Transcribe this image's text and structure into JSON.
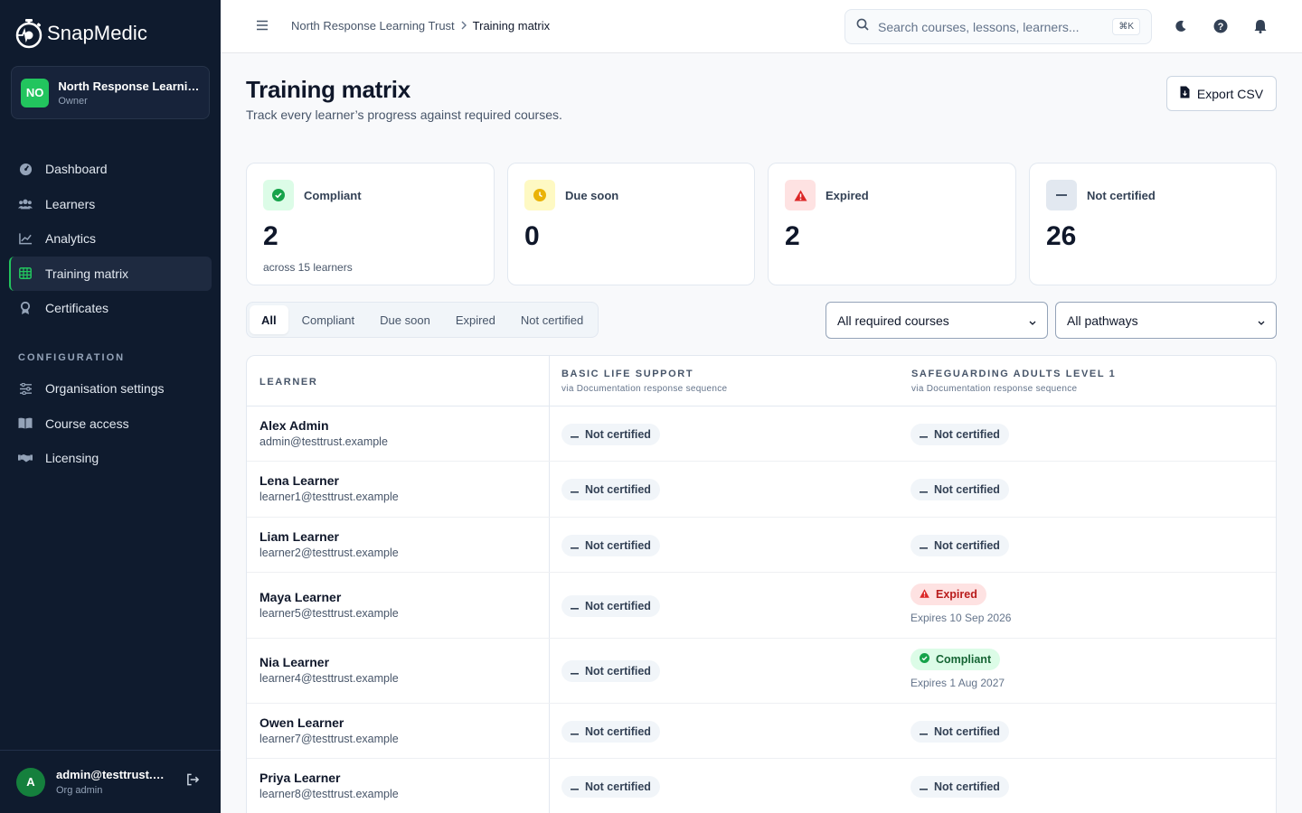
{
  "sidebar": {
    "brand": "SnapMedic",
    "org": {
      "initials": "NO",
      "name": "North Response Learning Trust",
      "role": "Owner"
    },
    "nav": [
      {
        "label": "Dashboard",
        "icon": "dashboard-icon"
      },
      {
        "label": "Learners",
        "icon": "users-icon"
      },
      {
        "label": "Analytics",
        "icon": "chart-line-icon"
      },
      {
        "label": "Training matrix",
        "icon": "grid-icon",
        "active": true
      },
      {
        "label": "Certificates",
        "icon": "badge-icon"
      }
    ],
    "config_label": "CONFIGURATION",
    "config_nav": [
      {
        "label": "Organisation settings",
        "icon": "sliders-icon"
      },
      {
        "label": "Course access",
        "icon": "book-icon"
      },
      {
        "label": "Licensing",
        "icon": "handshake-icon"
      }
    ],
    "user": {
      "initial": "A",
      "email": "admin@testtrust.example",
      "role": "Org admin"
    }
  },
  "topbar": {
    "breadcrumb": [
      "North Response Learning Trust",
      "Training matrix"
    ],
    "search_placeholder": "Search courses, lessons, learners...",
    "search_shortcut": "⌘K"
  },
  "header": {
    "title": "Training matrix",
    "subtitle": "Track every learner’s progress against required courses.",
    "export_label": "Export CSV"
  },
  "stats": [
    {
      "label": "Compliant",
      "value": "2",
      "note": "across 15 learners",
      "color": "#16a34a",
      "bg": "#dcfce7"
    },
    {
      "label": "Due soon",
      "value": "0",
      "note": "",
      "color": "#eab308",
      "bg": "#fef9c3"
    },
    {
      "label": "Expired",
      "value": "2",
      "note": "",
      "color": "#dc2626",
      "bg": "#fee2e2"
    },
    {
      "label": "Not certified",
      "value": "26",
      "note": "",
      "color": "#475569",
      "bg": "#e2e8f0"
    }
  ],
  "filters": {
    "tabs": [
      "All",
      "Compliant",
      "Due soon",
      "Expired",
      "Not certified"
    ],
    "active_tab": "All",
    "course_select": "All required courses",
    "pathway_select": "All pathways"
  },
  "table": {
    "columns": [
      {
        "title": "LEARNER",
        "sub": ""
      },
      {
        "title": "BASIC LIFE SUPPORT",
        "sub": "via Documentation response sequence"
      },
      {
        "title": "SAFEGUARDING ADULTS LEVEL 1",
        "sub": "via Documentation response sequence"
      }
    ],
    "rows": [
      {
        "name": "Alex Admin",
        "email": "admin@testtrust.example",
        "bls": {
          "status": "Not certified",
          "kind": "nc",
          "expires": ""
        },
        "sal": {
          "status": "Not certified",
          "kind": "nc",
          "expires": ""
        }
      },
      {
        "name": "Lena Learner",
        "email": "learner1@testtrust.example",
        "bls": {
          "status": "Not certified",
          "kind": "nc",
          "expires": ""
        },
        "sal": {
          "status": "Not certified",
          "kind": "nc",
          "expires": ""
        }
      },
      {
        "name": "Liam Learner",
        "email": "learner2@testtrust.example",
        "bls": {
          "status": "Not certified",
          "kind": "nc",
          "expires": ""
        },
        "sal": {
          "status": "Not certified",
          "kind": "nc",
          "expires": ""
        }
      },
      {
        "name": "Maya Learner",
        "email": "learner5@testtrust.example",
        "bls": {
          "status": "Not certified",
          "kind": "nc",
          "expires": ""
        },
        "sal": {
          "status": "Expired",
          "kind": "ex",
          "expires": "Expires 10 Sep 2026"
        }
      },
      {
        "name": "Nia Learner",
        "email": "learner4@testtrust.example",
        "bls": {
          "status": "Not certified",
          "kind": "nc",
          "expires": ""
        },
        "sal": {
          "status": "Compliant",
          "kind": "ok",
          "expires": "Expires 1 Aug 2027"
        }
      },
      {
        "name": "Owen Learner",
        "email": "learner7@testtrust.example",
        "bls": {
          "status": "Not certified",
          "kind": "nc",
          "expires": ""
        },
        "sal": {
          "status": "Not certified",
          "kind": "nc",
          "expires": ""
        }
      },
      {
        "name": "Priya Learner",
        "email": "learner8@testtrust.example",
        "bls": {
          "status": "Not certified",
          "kind": "nc",
          "expires": ""
        },
        "sal": {
          "status": "Not certified",
          "kind": "nc",
          "expires": ""
        }
      }
    ]
  }
}
